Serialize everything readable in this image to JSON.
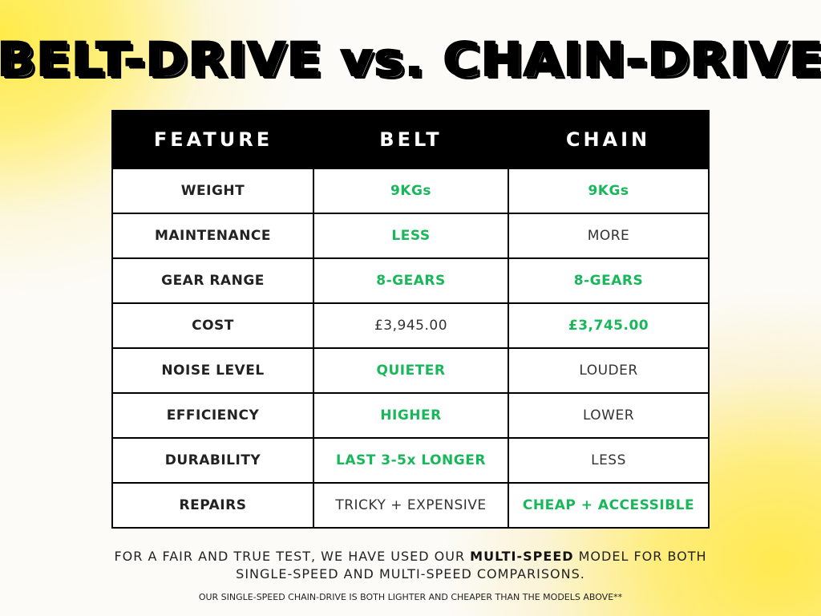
{
  "title": "BELT-DRIVE vs. CHAIN-DRIVE",
  "colors": {
    "advantage": "#18b85a",
    "header_bg": "#000000",
    "background_accent": "#ffe94f"
  },
  "table": {
    "headers": [
      "FEATURE",
      "BELT",
      "CHAIN"
    ],
    "rows": [
      {
        "feature": "WEIGHT",
        "belt": "9KGs",
        "belt_win": true,
        "chain": "9KGs",
        "chain_win": true
      },
      {
        "feature": "MAINTENANCE",
        "belt": "LESS",
        "belt_win": true,
        "chain": "MORE",
        "chain_win": false
      },
      {
        "feature": "GEAR RANGE",
        "belt": "8-GEARS",
        "belt_win": true,
        "chain": "8-GEARS",
        "chain_win": true
      },
      {
        "feature": "COST",
        "belt": "£3,945.00",
        "belt_win": false,
        "chain": "£3,745.00",
        "chain_win": true
      },
      {
        "feature": "NOISE LEVEL",
        "belt": "QUIETER",
        "belt_win": true,
        "chain": "LOUDER",
        "chain_win": false
      },
      {
        "feature": "EFFICIENCY",
        "belt": "HIGHER",
        "belt_win": true,
        "chain": "LOWER",
        "chain_win": false
      },
      {
        "feature": "DURABILITY",
        "belt": "LAST 3-5x LONGER",
        "belt_win": true,
        "chain": "LESS",
        "chain_win": false
      },
      {
        "feature": "REPAIRS",
        "belt": "TRICKY + EXPENSIVE",
        "belt_win": false,
        "chain": "CHEAP + ACCESSIBLE",
        "chain_win": true
      }
    ]
  },
  "note": {
    "part1": "FOR A FAIR AND TRUE TEST, WE HAVE USED OUR ",
    "emphasis": "MULTI-SPEED",
    "part2": " MODEL FOR BOTH",
    "line2": "SINGLE-SPEED AND MULTI-SPEED COMPARISONS."
  },
  "footnote": "OUR SINGLE-SPEED CHAIN-DRIVE IS BOTH LIGHTER AND CHEAPER THAN THE MODELS ABOVE**"
}
